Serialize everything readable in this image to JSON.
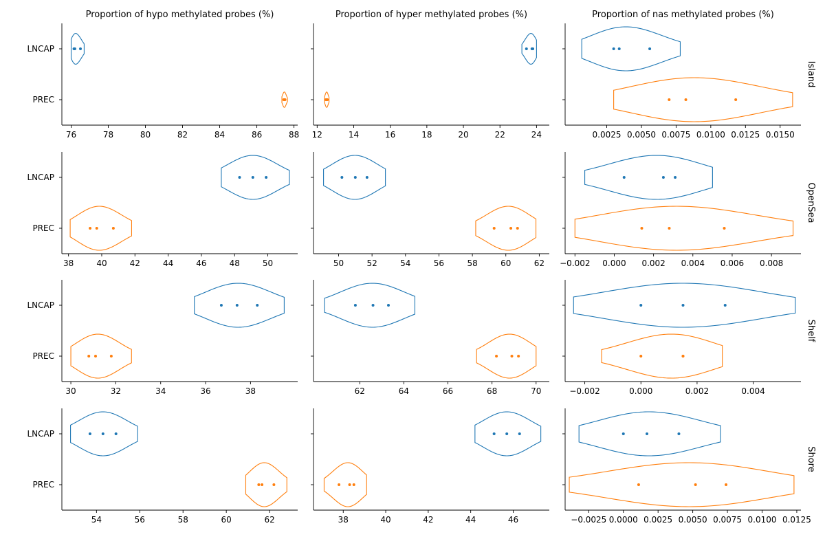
{
  "chart_data": {
    "type": "violin",
    "categories": [
      "LNCAP",
      "PREC"
    ],
    "colors": {
      "LNCAP": "#1f77b4",
      "PREC": "#ff7f0e"
    },
    "columns": [
      "Proportion of hypo methylated probes (%)",
      "Proportion of hyper methylated probes (%)",
      "Proportion of nas methylated probes (%)"
    ],
    "rows": [
      "Island",
      "OpenSea",
      "Shelf",
      "Shore"
    ],
    "panels": [
      [
        {
          "xlim": [
            75.5,
            88.2
          ],
          "ticks": [
            76,
            78,
            80,
            82,
            84,
            86,
            88
          ],
          "tick_labels": [
            "76",
            "78",
            "80",
            "82",
            "84",
            "86",
            "88"
          ],
          "groups": {
            "LNCAP": {
              "points": [
                76.15,
                76.2,
                76.5
              ],
              "min": 76.0,
              "max": 76.7,
              "width": 0.14
            },
            "PREC": {
              "points": [
                87.45,
                87.48,
                87.52
              ],
              "min": 87.35,
              "max": 87.65,
              "width": 0.07
            }
          }
        },
        {
          "xlim": [
            11.8,
            24.7
          ],
          "ticks": [
            12,
            14,
            16,
            18,
            20,
            22,
            24
          ],
          "tick_labels": [
            "12",
            "14",
            "16",
            "18",
            "20",
            "22",
            "24"
          ],
          "groups": {
            "LNCAP": {
              "points": [
                23.45,
                23.75,
                23.8
              ],
              "min": 23.2,
              "max": 24.0,
              "width": 0.14
            },
            "PREC": {
              "points": [
                12.48,
                12.52,
                12.56
              ],
              "min": 12.4,
              "max": 12.65,
              "width": 0.07
            }
          }
        },
        {
          "xlim": [
            -0.0005,
            0.0165
          ],
          "ticks": [
            0.0025,
            0.005,
            0.0075,
            0.01,
            0.0125,
            0.015
          ],
          "tick_labels": [
            "0.0025",
            "0.0050",
            "0.0075",
            "0.0100",
            "0.0125",
            "0.0150"
          ],
          "groups": {
            "LNCAP": {
              "points": [
                0.003,
                0.0034,
                0.0056
              ],
              "min": 0.0007,
              "max": 0.0078,
              "width": 0.2
            },
            "PREC": {
              "points": [
                0.007,
                0.0082,
                0.0118
              ],
              "min": 0.003,
              "max": 0.0159,
              "width": 0.2
            }
          }
        }
      ],
      [
        {
          "xlim": [
            37.6,
            51.8
          ],
          "ticks": [
            38,
            40,
            42,
            44,
            46,
            48,
            50
          ],
          "tick_labels": [
            "38",
            "40",
            "42",
            "44",
            "46",
            "48",
            "50"
          ],
          "groups": {
            "LNCAP": {
              "points": [
                48.3,
                49.1,
                49.9
              ],
              "min": 47.2,
              "max": 51.3,
              "width": 0.2
            },
            "PREC": {
              "points": [
                39.3,
                39.7,
                40.7
              ],
              "min": 38.1,
              "max": 41.8,
              "width": 0.2
            }
          }
        },
        {
          "xlim": [
            48.5,
            62.6
          ],
          "ticks": [
            50,
            52,
            54,
            56,
            58,
            60,
            62
          ],
          "tick_labels": [
            "50",
            "52",
            "54",
            "56",
            "58",
            "60",
            "62"
          ],
          "groups": {
            "LNCAP": {
              "points": [
                50.2,
                51.0,
                51.7
              ],
              "min": 49.1,
              "max": 52.8,
              "width": 0.2
            },
            "PREC": {
              "points": [
                59.3,
                60.3,
                60.7
              ],
              "min": 58.2,
              "max": 61.8,
              "width": 0.2
            }
          }
        },
        {
          "xlim": [
            -0.0025,
            0.0095
          ],
          "ticks": [
            -0.002,
            0,
            0.002,
            0.004,
            0.006,
            0.008
          ],
          "tick_labels": [
            "−0.002",
            "0.000",
            "0.002",
            "0.004",
            "0.006",
            "0.008"
          ],
          "groups": {
            "LNCAP": {
              "points": [
                0.0005,
                0.0025,
                0.0031
              ],
              "min": -0.0015,
              "max": 0.005,
              "width": 0.2
            },
            "PREC": {
              "points": [
                0.0014,
                0.0028,
                0.0056
              ],
              "min": -0.002,
              "max": 0.0091,
              "width": 0.2
            }
          }
        }
      ],
      [
        {
          "xlim": [
            29.6,
            40.1
          ],
          "ticks": [
            30,
            32,
            34,
            36,
            38
          ],
          "tick_labels": [
            "30",
            "32",
            "34",
            "36",
            "38"
          ],
          "groups": {
            "LNCAP": {
              "points": [
                36.7,
                37.4,
                38.3
              ],
              "min": 35.5,
              "max": 39.5,
              "width": 0.2
            },
            "PREC": {
              "points": [
                30.8,
                31.1,
                31.8
              ],
              "min": 30.0,
              "max": 32.7,
              "width": 0.2
            }
          }
        },
        {
          "xlim": [
            59.9,
            70.6
          ],
          "ticks": [
            62,
            64,
            66,
            68,
            70
          ],
          "tick_labels": [
            "62",
            "64",
            "66",
            "68",
            "70"
          ],
          "groups": {
            "LNCAP": {
              "points": [
                61.8,
                62.6,
                63.3
              ],
              "min": 60.4,
              "max": 64.5,
              "width": 0.2
            },
            "PREC": {
              "points": [
                68.2,
                68.9,
                69.2
              ],
              "min": 67.3,
              "max": 70.0,
              "width": 0.2
            }
          }
        },
        {
          "xlim": [
            -0.0027,
            0.0057
          ],
          "ticks": [
            -0.002,
            0,
            0.002,
            0.004
          ],
          "tick_labels": [
            "−0.002",
            "0.000",
            "0.002",
            "0.004"
          ],
          "groups": {
            "LNCAP": {
              "points": [
                0.0,
                0.0015,
                0.003
              ],
              "min": -0.0024,
              "max": 0.0055,
              "width": 0.2
            },
            "PREC": {
              "points": [
                0.0,
                0.0015,
                0.0015
              ],
              "min": -0.0014,
              "max": 0.0029,
              "width": 0.2
            }
          }
        }
      ],
      [
        {
          "xlim": [
            52.4,
            63.3
          ],
          "ticks": [
            54,
            56,
            58,
            60,
            62
          ],
          "tick_labels": [
            "54",
            "56",
            "58",
            "60",
            "62"
          ],
          "groups": {
            "LNCAP": {
              "points": [
                53.7,
                54.3,
                54.9
              ],
              "min": 52.8,
              "max": 55.9,
              "width": 0.2
            },
            "PREC": {
              "points": [
                61.5,
                61.65,
                62.2
              ],
              "min": 60.9,
              "max": 62.8,
              "width": 0.2
            }
          }
        },
        {
          "xlim": [
            36.6,
            47.7
          ],
          "ticks": [
            38,
            40,
            42,
            44,
            46
          ],
          "tick_labels": [
            "38",
            "40",
            "42",
            "44",
            "46"
          ],
          "groups": {
            "LNCAP": {
              "points": [
                45.1,
                45.7,
                46.3
              ],
              "min": 44.2,
              "max": 47.3,
              "width": 0.2
            },
            "PREC": {
              "points": [
                37.8,
                38.3,
                38.5
              ],
              "min": 37.1,
              "max": 39.1,
              "width": 0.2
            }
          }
        },
        {
          "xlim": [
            -0.0042,
            0.0128
          ],
          "ticks": [
            -0.0025,
            0,
            0.0025,
            0.005,
            0.0075,
            0.01,
            0.0125
          ],
          "tick_labels": [
            "−0.0025",
            "0.0000",
            "0.0025",
            "0.0050",
            "0.0075",
            "0.0100",
            "0.0125"
          ],
          "groups": {
            "LNCAP": {
              "points": [
                0.0,
                0.0017,
                0.004
              ],
              "min": -0.0032,
              "max": 0.007,
              "width": 0.2
            },
            "PREC": {
              "points": [
                0.0011,
                0.0052,
                0.0074
              ],
              "min": -0.0039,
              "max": 0.0123,
              "width": 0.2
            }
          }
        }
      ]
    ]
  }
}
